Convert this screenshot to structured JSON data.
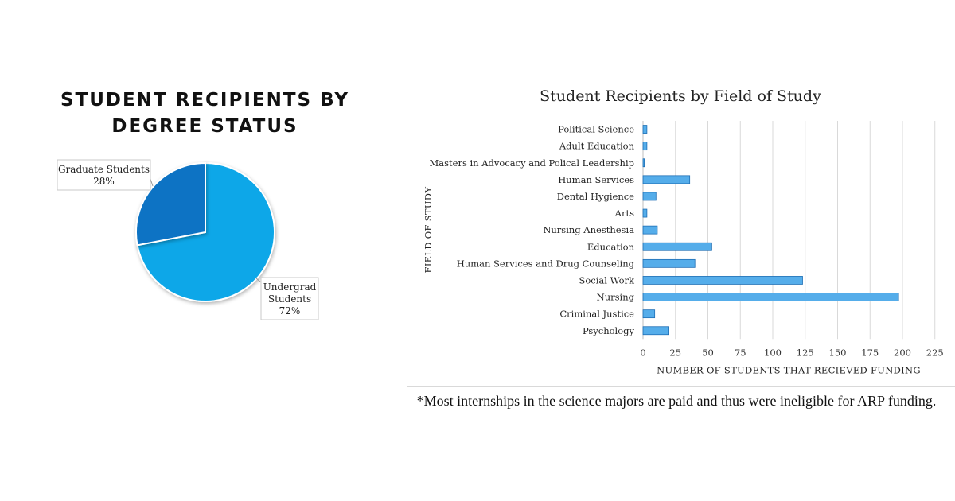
{
  "colors": {
    "pie_undergrad": "#0aa7e8",
    "pie_graduate": "#0873c4",
    "bar_fill": "#55adea",
    "bar_stroke": "#1f6fb5",
    "grid": "#d9d9d9"
  },
  "chart_data": [
    {
      "type": "pie",
      "title": "STUDENT RECIPIENTS BY DEGREE STATUS",
      "slices": [
        {
          "name": "Undergrad Students",
          "label_lines": [
            "Undergrad",
            "Students"
          ],
          "value": 72,
          "value_label": "72%"
        },
        {
          "name": "Graduate Students",
          "label_lines": [
            "Graduate Students"
          ],
          "value": 28,
          "value_label": "28%"
        }
      ]
    },
    {
      "type": "bar",
      "orientation": "horizontal",
      "title": "Student Recipients by Field of Study",
      "xlabel": "NUMBER OF STUDENTS THAT RECIEVED FUNDING",
      "ylabel": "FIELD OF STUDY",
      "xlim": [
        0,
        225
      ],
      "xticks": [
        0,
        25,
        50,
        75,
        100,
        125,
        150,
        175,
        200,
        225
      ],
      "grid": true,
      "categories": [
        "Political Science",
        "Adult Education",
        "Masters in Advocacy and Polical Leadership",
        "Human Services",
        "Dental Hygience",
        "Arts",
        "Nursing Anesthesia",
        "Education",
        "Human Services and Drug Counseling",
        "Social Work",
        "Nursing",
        "Criminal Justice",
        "Psychology"
      ],
      "values": [
        3,
        3,
        1,
        36,
        10,
        3,
        11,
        53,
        40,
        123,
        197,
        9,
        20
      ]
    }
  ],
  "footnote": "*Most internships in the science majors are paid and thus were ineligible for ARP funding."
}
